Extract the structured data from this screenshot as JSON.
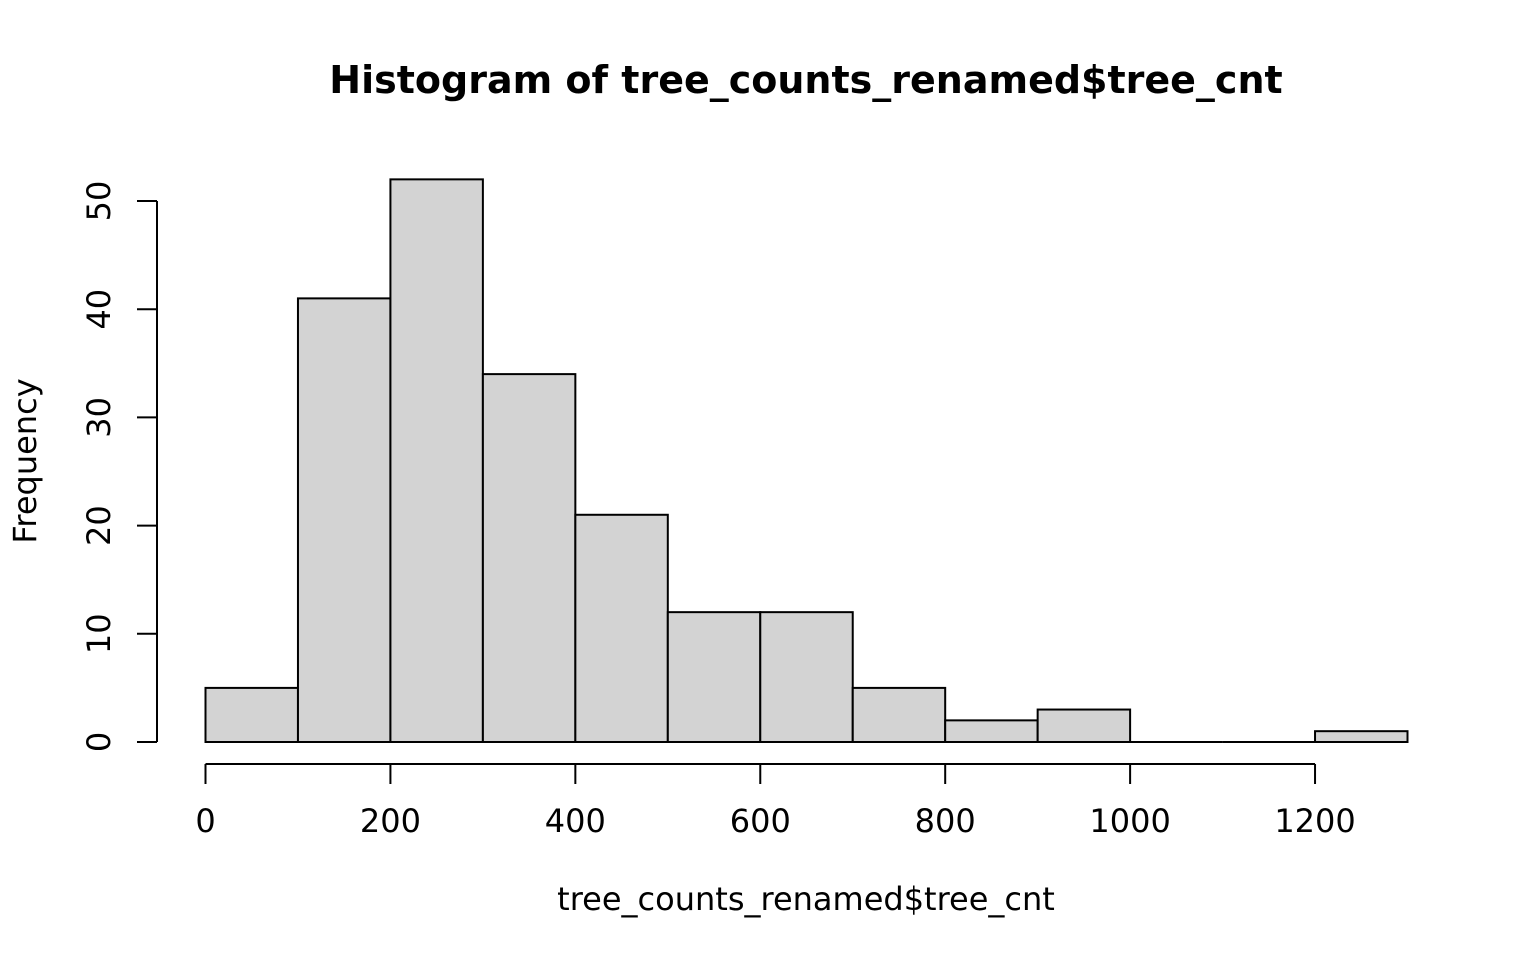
{
  "chart_data": {
    "type": "bar",
    "title": "Histogram of tree_counts_renamed$tree_cnt",
    "xlabel": "tree_counts_renamed$tree_cnt",
    "ylabel": "Frequency",
    "bins": [
      {
        "start": 0,
        "end": 100,
        "count": 5
      },
      {
        "start": 100,
        "end": 200,
        "count": 41
      },
      {
        "start": 200,
        "end": 300,
        "count": 52
      },
      {
        "start": 300,
        "end": 400,
        "count": 34
      },
      {
        "start": 400,
        "end": 500,
        "count": 21
      },
      {
        "start": 500,
        "end": 600,
        "count": 12
      },
      {
        "start": 600,
        "end": 700,
        "count": 12
      },
      {
        "start": 700,
        "end": 800,
        "count": 5
      },
      {
        "start": 800,
        "end": 900,
        "count": 2
      },
      {
        "start": 900,
        "end": 1000,
        "count": 3
      },
      {
        "start": 1000,
        "end": 1100,
        "count": 0
      },
      {
        "start": 1100,
        "end": 1200,
        "count": 0
      },
      {
        "start": 1200,
        "end": 1300,
        "count": 1
      }
    ],
    "x_ticks": [
      0,
      200,
      400,
      600,
      800,
      1000,
      1200
    ],
    "y_ticks": [
      0,
      10,
      20,
      30,
      40,
      50
    ],
    "xlim": [
      0,
      1300
    ],
    "ylim": [
      0,
      50
    ],
    "grid": false,
    "bar_fill": "#d3d3d3",
    "bar_stroke": "#000000"
  }
}
